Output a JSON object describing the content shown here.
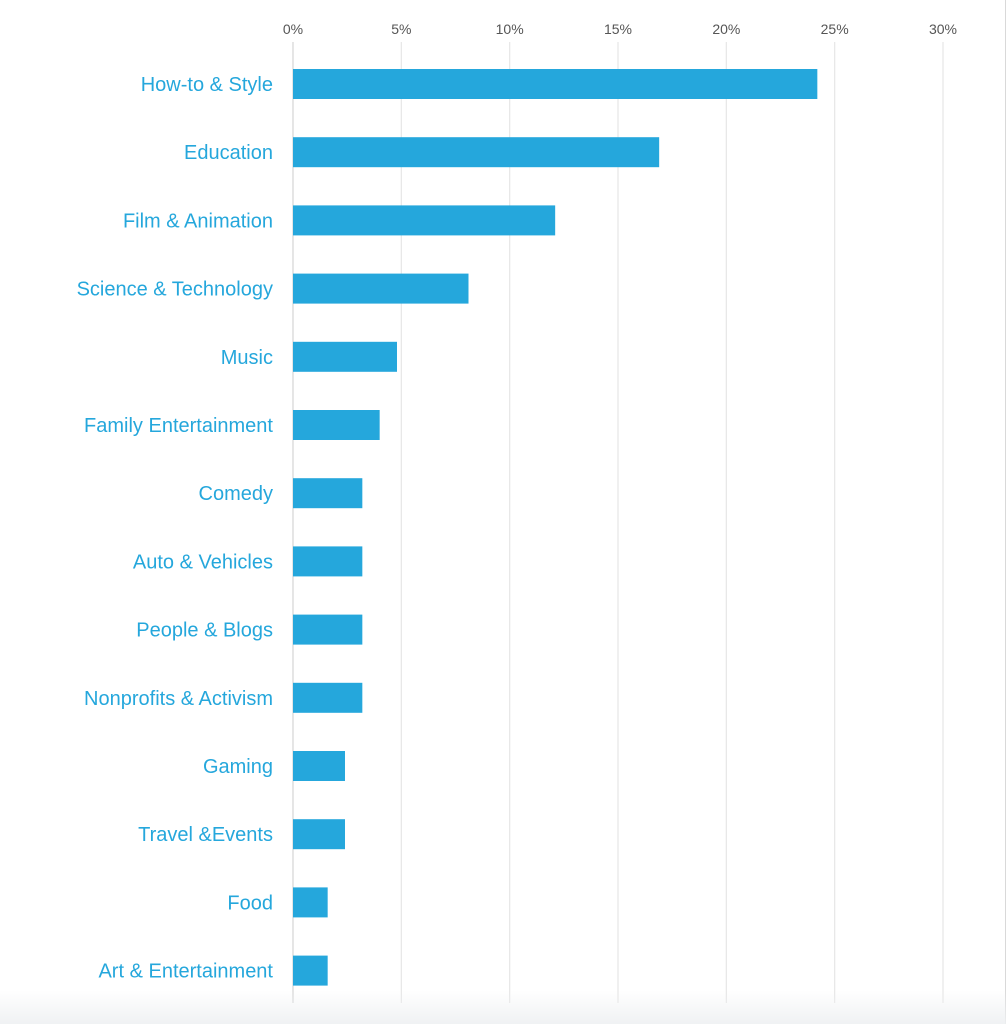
{
  "chart_data": {
    "type": "bar",
    "orientation": "horizontal",
    "categories": [
      "How-to & Style",
      "Education",
      "Film & Animation",
      "Science & Technology",
      "Music",
      "Family Entertainment",
      "Comedy",
      "Auto & Vehicles",
      "People & Blogs",
      "Nonprofits & Activism",
      "Gaming",
      "Travel &Events",
      "Food",
      "Art & Entertainment"
    ],
    "values": [
      24.2,
      16.9,
      12.1,
      8.1,
      4.8,
      4.0,
      3.2,
      3.2,
      3.2,
      3.2,
      2.4,
      2.4,
      1.6,
      1.6
    ],
    "xlim": [
      0,
      30
    ],
    "x_ticks": [
      0,
      5,
      10,
      15,
      20,
      25,
      30
    ],
    "x_tick_labels": [
      "0%",
      "5%",
      "10%",
      "15%",
      "20%",
      "25%",
      "30%"
    ],
    "x_axis_position": "top",
    "grid": true,
    "legend": "none",
    "title": "",
    "xlabel": "",
    "ylabel": "",
    "colors": {
      "bar": "#25a7dc",
      "category_label": "#25a7dc",
      "tick_label": "#555555",
      "grid": "#e6e6e6"
    }
  }
}
